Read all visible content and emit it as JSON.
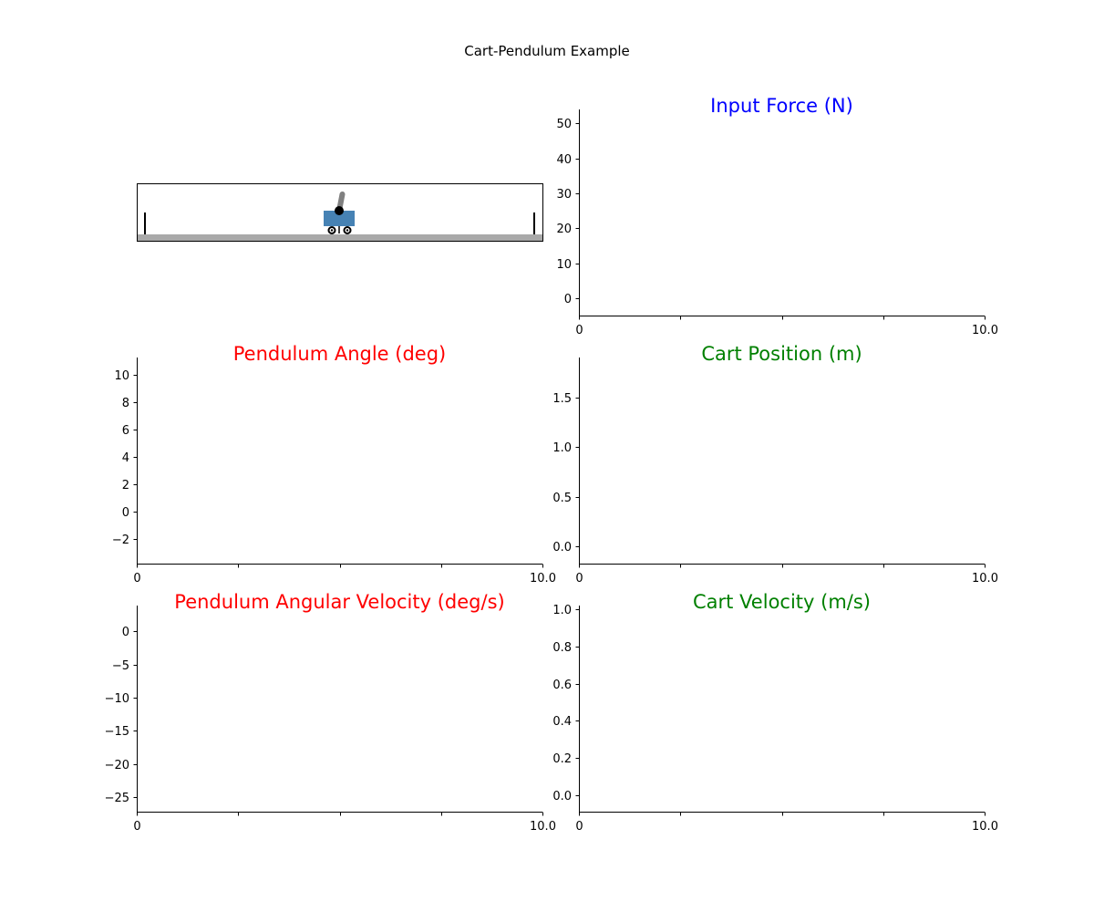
{
  "figure": {
    "title": "Cart-Pendulum Example"
  },
  "animation": {
    "cart_color": "#4682B4",
    "track_color": "#A9A9A9",
    "pendulum_color": "#808080",
    "pendulum_angle_deg": 10,
    "cart_position_m": 0
  },
  "chart_data": [
    {
      "id": "input-force",
      "type": "line",
      "title": "Input Force (N)",
      "title_color": "#0000FF",
      "xlim": [
        0,
        10
      ],
      "ylim": [
        -5,
        54
      ],
      "xticks": [
        0,
        2.5,
        5,
        7.5,
        10
      ],
      "xticklabels": [
        "0",
        "",
        "",
        "",
        "10.0"
      ],
      "yticks": [
        0,
        10,
        20,
        30,
        40,
        50
      ],
      "yticklabels": [
        "0",
        "10",
        "20",
        "30",
        "40",
        "50"
      ],
      "series": [],
      "grid": false
    },
    {
      "id": "pendulum-angle",
      "type": "line",
      "title": "Pendulum Angle (deg)",
      "title_color": "#FF0000",
      "xlim": [
        0,
        10
      ],
      "ylim": [
        -3.8,
        11.3
      ],
      "xticks": [
        0,
        2.5,
        5,
        7.5,
        10
      ],
      "xticklabels": [
        "0",
        "",
        "",
        "",
        "10.0"
      ],
      "yticks": [
        -2,
        0,
        2,
        4,
        6,
        8,
        10
      ],
      "yticklabels": [
        "−2",
        "0",
        "2",
        "4",
        "6",
        "8",
        "10"
      ],
      "series": [],
      "grid": false
    },
    {
      "id": "cart-position",
      "type": "line",
      "title": "Cart Position (m)",
      "title_color": "#008000",
      "xlim": [
        0,
        10
      ],
      "ylim": [
        -0.17,
        1.9
      ],
      "xticks": [
        0,
        2.5,
        5,
        7.5,
        10
      ],
      "xticklabels": [
        "0",
        "",
        "",
        "",
        "10.0"
      ],
      "yticks": [
        0,
        0.5,
        1.0,
        1.5
      ],
      "yticklabels": [
        "0.0",
        "0.5",
        "1.0",
        "1.5"
      ],
      "series": [],
      "grid": false
    },
    {
      "id": "pendulum-angular-velocity",
      "type": "line",
      "title": "Pendulum Angular Velocity (deg/s)",
      "title_color": "#FF0000",
      "xlim": [
        0,
        10
      ],
      "ylim": [
        -27.2,
        3.9
      ],
      "xticks": [
        0,
        2.5,
        5,
        7.5,
        10
      ],
      "xticklabels": [
        "0",
        "",
        "",
        "",
        "10.0"
      ],
      "yticks": [
        -25,
        -20,
        -15,
        -10,
        -5,
        0
      ],
      "yticklabels": [
        "−25",
        "−20",
        "−15",
        "−10",
        "−5",
        "0"
      ],
      "series": [],
      "grid": false
    },
    {
      "id": "cart-velocity",
      "type": "line",
      "title": "Cart Velocity (m/s)",
      "title_color": "#008000",
      "xlim": [
        0,
        10
      ],
      "ylim": [
        -0.09,
        1.02
      ],
      "xticks": [
        0,
        2.5,
        5,
        7.5,
        10
      ],
      "xticklabels": [
        "0",
        "",
        "",
        "",
        "10.0"
      ],
      "yticks": [
        0,
        0.2,
        0.4,
        0.6,
        0.8,
        1.0
      ],
      "yticklabels": [
        "0.0",
        "0.2",
        "0.4",
        "0.6",
        "0.8",
        "1.0"
      ],
      "series": [],
      "grid": false
    }
  ]
}
